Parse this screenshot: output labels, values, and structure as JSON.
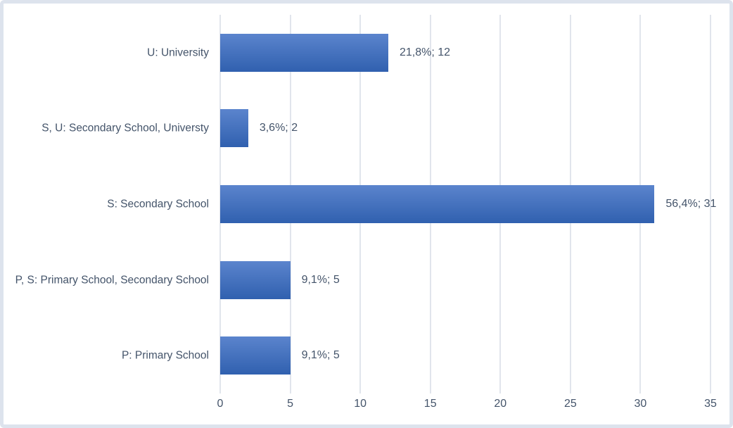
{
  "chart_data": {
    "type": "bar",
    "orientation": "horizontal",
    "title": "",
    "xlabel": "",
    "ylabel": "",
    "categories": [
      "U: University",
      "S, U: Secondary School, Universty",
      "S: Secondary School",
      "P, S: Primary School, Secondary School",
      "P: Primary School"
    ],
    "values": [
      12,
      2,
      31,
      5,
      5
    ],
    "percentages": [
      21.8,
      3.6,
      56.4,
      9.1,
      9.1
    ],
    "data_labels": [
      "21,8%; 12",
      "3,6%; 2",
      "56,4%; 31",
      "9,1%; 5",
      "9,1%; 5"
    ],
    "x_ticks": [
      "0",
      "5",
      "10",
      "15",
      "20",
      "25",
      "30",
      "35"
    ],
    "xlim": [
      0,
      35
    ],
    "grid": true,
    "legend": false,
    "colors": {
      "bar_gradient_top": "#5b84cd",
      "bar_gradient_bottom": "#3060af",
      "gridline": "#e1e5ec",
      "text": "#44546a",
      "frame_border": "#dde3ed",
      "background": "#ffffff"
    }
  }
}
